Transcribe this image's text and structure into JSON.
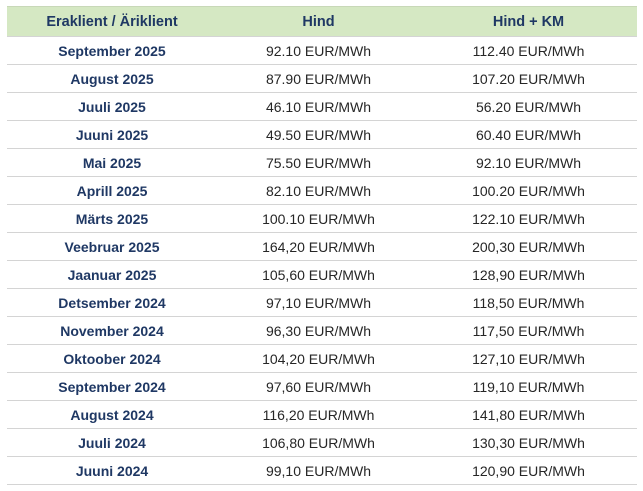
{
  "table": {
    "header": [
      "Eraklient / Äriklient",
      "Hind",
      "Hind + KM"
    ],
    "rows": [
      [
        "September 2025",
        "92.10 EUR/MWh",
        "112.40 EUR/MWh"
      ],
      [
        "August 2025",
        "87.90 EUR/MWh",
        "107.20 EUR/MWh"
      ],
      [
        "Juuli 2025",
        "46.10 EUR/MWh",
        "56.20 EUR/MWh"
      ],
      [
        "Juuni 2025",
        "49.50 EUR/MWh",
        "60.40 EUR/MWh"
      ],
      [
        "Mai 2025",
        "75.50 EUR/MWh",
        "92.10 EUR/MWh"
      ],
      [
        "Aprill 2025",
        "82.10 EUR/MWh",
        "100.20 EUR/MWh"
      ],
      [
        "Märts 2025",
        "100.10 EUR/MWh",
        "122.10 EUR/MWh"
      ],
      [
        "Veebruar 2025",
        "164,20 EUR/MWh",
        "200,30 EUR/MWh"
      ],
      [
        "Jaanuar 2025",
        "105,60 EUR/MWh",
        "128,90 EUR/MWh"
      ],
      [
        "Detsember 2024",
        "97,10 EUR/MWh",
        "118,50 EUR/MWh"
      ],
      [
        "November 2024",
        "96,30 EUR/MWh",
        "117,50 EUR/MWh"
      ],
      [
        "Oktoober 2024",
        "104,20 EUR/MWh",
        "127,10 EUR/MWh"
      ],
      [
        "September 2024",
        "97,60 EUR/MWh",
        "119,10 EUR/MWh"
      ],
      [
        "August 2024",
        "116,20 EUR/MWh",
        "141,80 EUR/MWh"
      ],
      [
        "Juuli 2024",
        "106,80 EUR/MWh",
        "130,30 EUR/MWh"
      ],
      [
        "Juuni 2024",
        "99,10 EUR/MWh",
        "120,90 EUR/MWh"
      ]
    ]
  }
}
